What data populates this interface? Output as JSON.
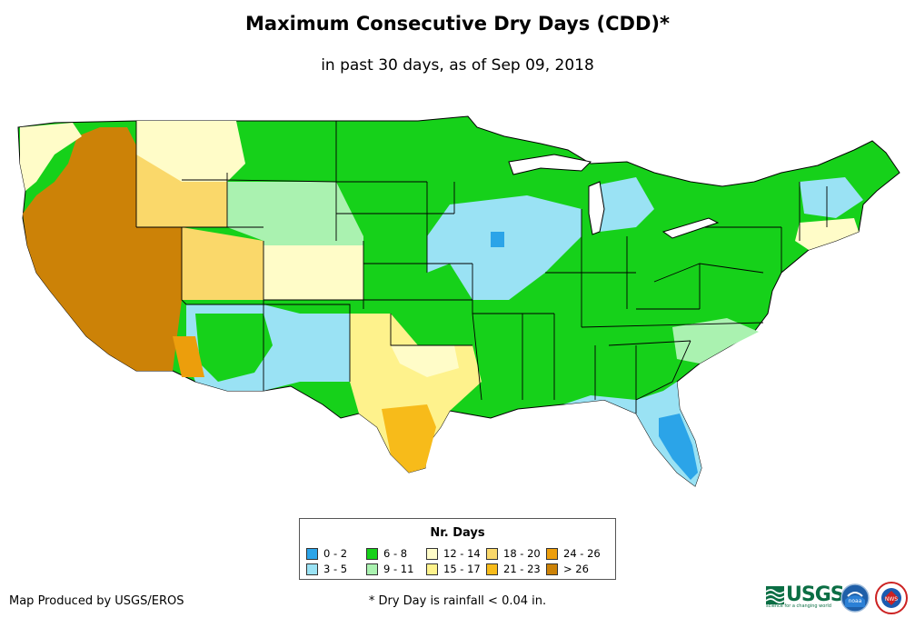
{
  "title": "Maximum Consecutive Dry Days (CDD)*",
  "subtitle": "in past 30 days, as of Sep 09, 2018",
  "legend": {
    "title": "Nr. Days",
    "items": [
      {
        "label": "0 - 2",
        "color": "#2ba4e8"
      },
      {
        "label": "3 - 5",
        "color": "#9ae2f4"
      },
      {
        "label": "6 - 8",
        "color": "#16d11a"
      },
      {
        "label": "9 - 11",
        "color": "#aaf2b0"
      },
      {
        "label": "12 - 14",
        "color": "#fffcc8"
      },
      {
        "label": "15 - 17",
        "color": "#fef28c"
      },
      {
        "label": "18 - 20",
        "color": "#fad86a"
      },
      {
        "label": "21 - 23",
        "color": "#f7bb1a"
      },
      {
        "label": "24 - 26",
        "color": "#ec9e0c"
      },
      {
        "label": "> 26",
        "color": "#cc8207"
      }
    ]
  },
  "footer": {
    "producer": "Map Produced by USGS/EROS",
    "note": "* Dry Day is rainfall < 0.04 in."
  },
  "logos": {
    "usgs_text": "USGS",
    "usgs_tagline": "science for a changing world",
    "noaa_text": "noaa",
    "nws_text": "NWS"
  },
  "colors": {
    "border": "#000000",
    "water": "#ffffff"
  }
}
